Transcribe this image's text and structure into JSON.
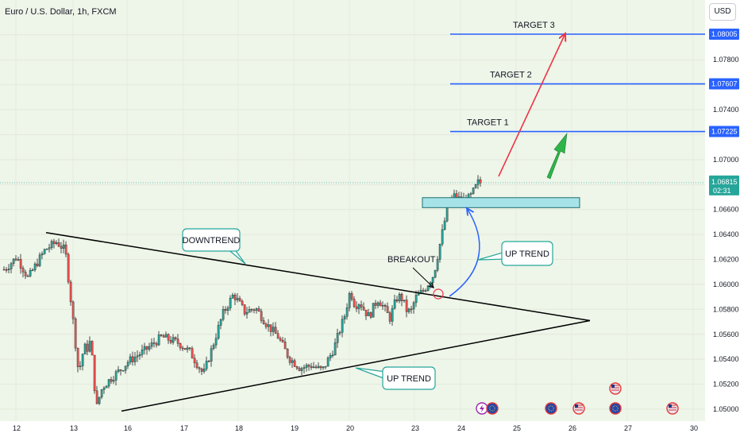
{
  "header": {
    "symbol_title": "Euro / U.S. Dollar, 1h, FXCM",
    "currency": "USD"
  },
  "colors": {
    "background": "#eef5e9",
    "bull_candle": "#26a69a",
    "bear_candle": "#ef5350",
    "target_line": "#2962ff",
    "zone_fill": "#a6e3e9",
    "zone_border": "#1f6f6f",
    "red_arrow": "#ef3345",
    "green_arrow": "#2eb54a",
    "blue_arrow": "#2962ff",
    "trendline": "#000000",
    "label_border": "#26a69a"
  },
  "chart_data": {
    "type": "candlestick",
    "symbol": "Euro / U.S. Dollar",
    "timeframe": "1h",
    "source": "FXCM",
    "x_ticks": [
      "12",
      "13",
      "16",
      "17",
      "18",
      "19",
      "20",
      "23",
      "24",
      "25",
      "26",
      "27",
      "30"
    ],
    "y_ticks": [
      1.05,
      1.052,
      1.054,
      1.056,
      1.058,
      1.06,
      1.062,
      1.064,
      1.066,
      1.068,
      1.07,
      1.072,
      1.074,
      1.076,
      1.078,
      1.08
    ],
    "ylim": [
      1.0497,
      1.0822
    ],
    "current_price": "1.06815",
    "countdown": "02:31",
    "target_levels": [
      {
        "label": "TARGET 1",
        "value": 1.07225,
        "value_text": "1.07225"
      },
      {
        "label": "TARGET 2",
        "value": 1.07607,
        "value_text": "1.07607"
      },
      {
        "label": "TARGET 3",
        "value": 1.08005,
        "value_text": "1.08005"
      }
    ],
    "annotations": {
      "downtrend": "DOWNTREND",
      "up_trend_lower": "UP TREND",
      "up_trend_right": "UP TREND",
      "breakout": "BREAKOUT"
    },
    "resistance_zone": {
      "low": 1.06615,
      "high": 1.06695
    },
    "downtrend_line": {
      "from_day": 12.75,
      "from_value": 1.06415,
      "to_day": 27.3,
      "to_value": 1.0571
    },
    "uptrend_line": {
      "from_day": 16.0,
      "from_value": 1.04985,
      "to_day": 27.3,
      "to_value": 1.0571
    },
    "price_path": [
      {
        "d": 11.8,
        "p": 1.0612
      },
      {
        "d": 12.0,
        "p": 1.0622
      },
      {
        "d": 12.2,
        "p": 1.0605
      },
      {
        "d": 12.35,
        "p": 1.0617
      },
      {
        "d": 12.5,
        "p": 1.0628
      },
      {
        "d": 12.7,
        "p": 1.0634
      },
      {
        "d": 12.85,
        "p": 1.0627
      },
      {
        "d": 13.0,
        "p": 1.0565
      },
      {
        "d": 13.15,
        "p": 1.0548
      },
      {
        "d": 13.3,
        "p": 1.0532
      },
      {
        "d": 13.5,
        "p": 1.0536
      },
      {
        "d": 13.7,
        "p": 1.0551
      },
      {
        "d": 13.9,
        "p": 1.0547
      },
      {
        "d": 14.1,
        "p": 1.0555
      },
      {
        "d": 14.3,
        "p": 1.0545
      },
      {
        "d": 14.5,
        "p": 1.0521
      },
      {
        "d": 14.7,
        "p": 1.0501
      },
      {
        "d": 14.9,
        "p": 1.0508
      },
      {
        "d": 15.1,
        "p": 1.0518
      },
      {
        "d": 15.4,
        "p": 1.0525
      },
      {
        "d": 15.7,
        "p": 1.0531
      },
      {
        "d": 16.0,
        "p": 1.0538
      },
      {
        "d": 16.3,
        "p": 1.0547
      },
      {
        "d": 16.6,
        "p": 1.0558
      },
      {
        "d": 16.9,
        "p": 1.0553
      },
      {
        "d": 17.1,
        "p": 1.0546
      },
      {
        "d": 17.35,
        "p": 1.0528
      },
      {
        "d": 17.5,
        "p": 1.0548
      },
      {
        "d": 17.7,
        "p": 1.0576
      },
      {
        "d": 17.9,
        "p": 1.0592
      },
      {
        "d": 18.1,
        "p": 1.0578
      },
      {
        "d": 18.3,
        "p": 1.0581
      },
      {
        "d": 18.5,
        "p": 1.0568
      },
      {
        "d": 18.7,
        "p": 1.0558
      },
      {
        "d": 18.9,
        "p": 1.0541
      },
      {
        "d": 19.1,
        "p": 1.0533
      },
      {
        "d": 19.3,
        "p": 1.0535
      },
      {
        "d": 19.5,
        "p": 1.0531
      },
      {
        "d": 19.7,
        "p": 1.0548
      },
      {
        "d": 19.9,
        "p": 1.0575
      },
      {
        "d": 20.0,
        "p": 1.0595
      },
      {
        "d": 20.2,
        "p": 1.0583
      },
      {
        "d": 20.4,
        "p": 1.0586
      },
      {
        "d": 20.6,
        "p": 1.0579
      },
      {
        "d": 20.8,
        "p": 1.0574
      },
      {
        "d": 21.0,
        "p": 1.0583
      },
      {
        "d": 21.2,
        "p": 1.0588
      },
      {
        "d": 21.4,
        "p": 1.0584
      },
      {
        "d": 21.6,
        "p": 1.0578
      },
      {
        "d": 21.8,
        "p": 1.0573
      },
      {
        "d": 22.0,
        "p": 1.0583
      },
      {
        "d": 22.2,
        "p": 1.0591
      },
      {
        "d": 22.4,
        "p": 1.0588
      },
      {
        "d": 22.6,
        "p": 1.0579
      },
      {
        "d": 22.8,
        "p": 1.0578
      },
      {
        "d": 23.0,
        "p": 1.0589
      },
      {
        "d": 23.2,
        "p": 1.0596
      },
      {
        "d": 23.4,
        "p": 1.0608
      },
      {
        "d": 23.55,
        "p": 1.0635
      },
      {
        "d": 23.7,
        "p": 1.0662
      },
      {
        "d": 23.85,
        "p": 1.0671
      },
      {
        "d": 24.0,
        "p": 1.0667
      },
      {
        "d": 24.15,
        "p": 1.0669
      },
      {
        "d": 24.3,
        "p": 1.06815
      }
    ],
    "bottom_events": [
      "lightning",
      "eu-flag",
      "eu-flag",
      "us-flag",
      "eu-flag",
      "us-flag",
      "us-flag"
    ]
  }
}
